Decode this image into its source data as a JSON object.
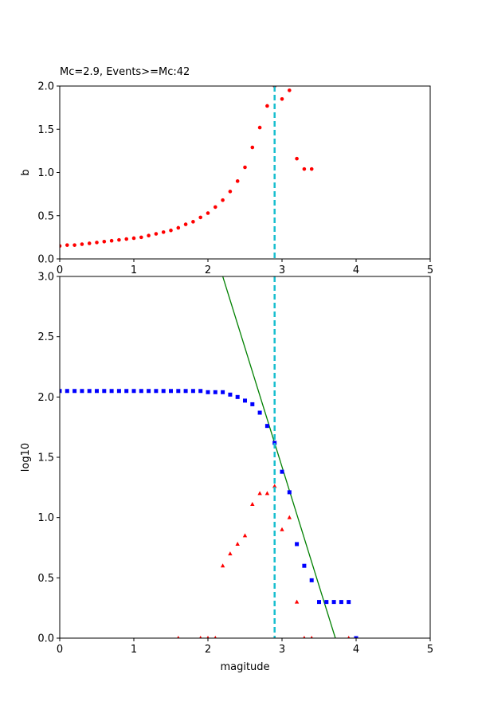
{
  "chart_data": [
    {
      "type": "scatter",
      "title": "Mc=2.9, Events>=Mc:42",
      "xlabel": "",
      "ylabel": "b",
      "xlim": [
        0,
        5
      ],
      "ylim": [
        0,
        2.0
      ],
      "xticks": [
        "0",
        "1",
        "2",
        "3",
        "4",
        "5"
      ],
      "yticks": [
        "0.0",
        "0.5",
        "1.0",
        "1.5",
        "2.0"
      ],
      "grid": false,
      "mc_line": {
        "x": 2.9,
        "color": "#17becf",
        "style": "dashed"
      },
      "series": [
        {
          "color": "#ff0000",
          "marker": "circle",
          "x": [
            0.0,
            0.1,
            0.2,
            0.3,
            0.4,
            0.5,
            0.6,
            0.7,
            0.8,
            0.9,
            1.0,
            1.1,
            1.2,
            1.3,
            1.4,
            1.5,
            1.6,
            1.7,
            1.8,
            1.9,
            2.0,
            2.1,
            2.2,
            2.3,
            2.4,
            2.5,
            2.6,
            2.7,
            2.8,
            2.9,
            3.0,
            3.1,
            3.2,
            3.3,
            3.4
          ],
          "y": [
            0.15,
            0.16,
            0.16,
            0.17,
            0.18,
            0.19,
            0.2,
            0.21,
            0.22,
            0.23,
            0.24,
            0.25,
            0.27,
            0.29,
            0.31,
            0.33,
            0.36,
            0.4,
            0.43,
            0.48,
            0.53,
            0.6,
            0.68,
            0.78,
            0.9,
            1.06,
            1.29,
            1.52,
            1.77,
            2.0,
            1.85,
            1.95,
            1.16,
            1.04,
            1.04
          ]
        }
      ]
    },
    {
      "type": "scatter",
      "title": "",
      "xlabel": "magitude",
      "ylabel": "log10",
      "xlim": [
        0,
        5
      ],
      "ylim": [
        0,
        3.0
      ],
      "xticks": [
        "0",
        "1",
        "2",
        "3",
        "4",
        "5"
      ],
      "yticks": [
        "0.0",
        "0.5",
        "1.0",
        "1.5",
        "2.0",
        "2.5",
        "3.0"
      ],
      "grid": false,
      "mc_line": {
        "x": 2.9,
        "color": "#17becf",
        "style": "dashed"
      },
      "fit_line": {
        "color": "#008000",
        "x": [
          2.2,
          3.72
        ],
        "y": [
          3.0,
          0.0
        ]
      },
      "series": [
        {
          "color": "#0000ff",
          "marker": "square",
          "x": [
            0.0,
            0.1,
            0.2,
            0.3,
            0.4,
            0.5,
            0.6,
            0.7,
            0.8,
            0.9,
            1.0,
            1.1,
            1.2,
            1.3,
            1.4,
            1.5,
            1.6,
            1.7,
            1.8,
            1.9,
            2.0,
            2.1,
            2.2,
            2.3,
            2.4,
            2.5,
            2.6,
            2.7,
            2.8,
            2.9,
            3.0,
            3.1,
            3.2,
            3.3,
            3.4,
            3.5,
            3.6,
            3.7,
            3.8,
            3.9,
            4.0
          ],
          "y": [
            2.05,
            2.05,
            2.05,
            2.05,
            2.05,
            2.05,
            2.05,
            2.05,
            2.05,
            2.05,
            2.05,
            2.05,
            2.05,
            2.05,
            2.05,
            2.05,
            2.05,
            2.05,
            2.05,
            2.05,
            2.04,
            2.04,
            2.04,
            2.02,
            2.0,
            1.97,
            1.94,
            1.87,
            1.76,
            1.62,
            1.38,
            1.21,
            0.78,
            0.6,
            0.48,
            0.3,
            0.3,
            0.3,
            0.3,
            0.3,
            0.0
          ]
        },
        {
          "color": "#ff0000",
          "marker": "triangle",
          "x": [
            1.6,
            1.9,
            2.0,
            2.1,
            2.2,
            2.3,
            2.4,
            2.5,
            2.6,
            2.7,
            2.8,
            2.9,
            3.0,
            3.1,
            3.2,
            3.3,
            3.4,
            3.9
          ],
          "y": [
            0.0,
            0.0,
            0.0,
            0.0,
            0.6,
            0.7,
            0.78,
            0.85,
            1.11,
            1.2,
            1.2,
            1.26,
            0.9,
            1.0,
            0.3,
            0.0,
            0.0,
            0.0
          ]
        }
      ]
    }
  ]
}
